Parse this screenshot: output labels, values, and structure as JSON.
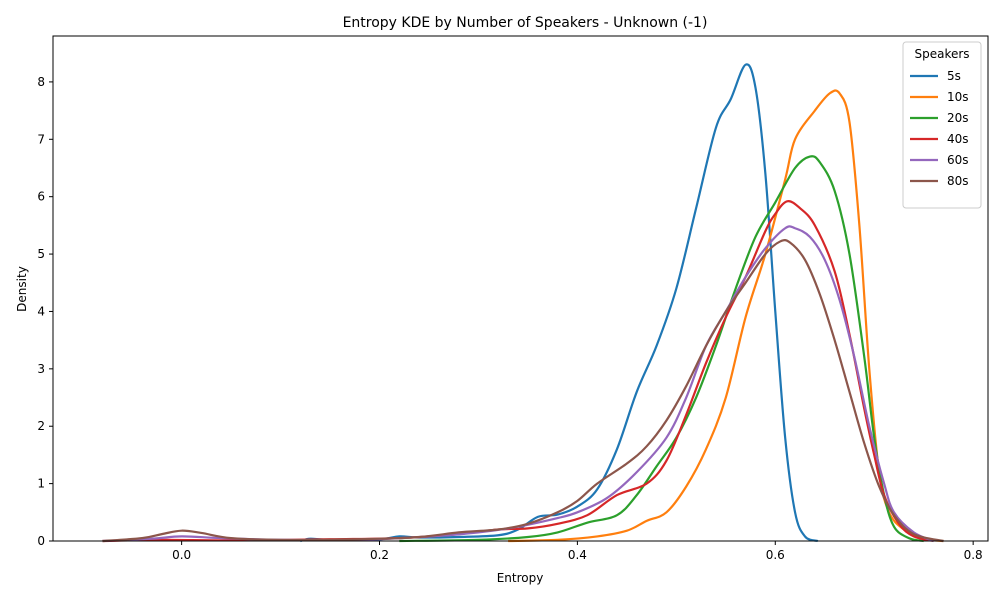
{
  "chart_data": {
    "type": "line",
    "title": "Entropy KDE by Number of Speakers - Unknown (-1)",
    "xlabel": "Entropy",
    "ylabel": "Density",
    "xlim": [
      -0.13,
      0.815
    ],
    "ylim": [
      0,
      8.8
    ],
    "xticks": [
      0.0,
      0.2,
      0.4,
      0.6,
      0.8
    ],
    "xtick_labels": [
      "0.0",
      "0.2",
      "0.4",
      "0.6",
      "0.8"
    ],
    "yticks": [
      0,
      1,
      2,
      3,
      4,
      5,
      6,
      7,
      8
    ],
    "ytick_labels": [
      "0",
      "1",
      "2",
      "3",
      "4",
      "5",
      "6",
      "7",
      "8"
    ],
    "grid": false,
    "legend": {
      "title": "Speakers",
      "placement": "top-right"
    },
    "series": [
      {
        "name": "5s",
        "color": "#1f77b4",
        "points": [
          [
            0.12,
            0.0
          ],
          [
            0.13,
            0.04
          ],
          [
            0.15,
            0.02
          ],
          [
            0.2,
            0.03
          ],
          [
            0.22,
            0.08
          ],
          [
            0.24,
            0.06
          ],
          [
            0.28,
            0.07
          ],
          [
            0.32,
            0.1
          ],
          [
            0.34,
            0.2
          ],
          [
            0.36,
            0.42
          ],
          [
            0.38,
            0.46
          ],
          [
            0.4,
            0.6
          ],
          [
            0.42,
            0.9
          ],
          [
            0.44,
            1.6
          ],
          [
            0.46,
            2.6
          ],
          [
            0.48,
            3.4
          ],
          [
            0.5,
            4.4
          ],
          [
            0.52,
            5.8
          ],
          [
            0.54,
            7.2
          ],
          [
            0.555,
            7.7
          ],
          [
            0.57,
            8.3
          ],
          [
            0.58,
            7.9
          ],
          [
            0.59,
            6.4
          ],
          [
            0.6,
            4.0
          ],
          [
            0.61,
            1.8
          ],
          [
            0.62,
            0.5
          ],
          [
            0.63,
            0.08
          ],
          [
            0.643,
            0.0
          ]
        ]
      },
      {
        "name": "10s",
        "color": "#ff7f0e",
        "points": [
          [
            0.33,
            0.0
          ],
          [
            0.38,
            0.02
          ],
          [
            0.42,
            0.08
          ],
          [
            0.45,
            0.18
          ],
          [
            0.47,
            0.35
          ],
          [
            0.49,
            0.5
          ],
          [
            0.51,
            0.95
          ],
          [
            0.53,
            1.6
          ],
          [
            0.55,
            2.5
          ],
          [
            0.57,
            3.9
          ],
          [
            0.59,
            5.0
          ],
          [
            0.61,
            6.3
          ],
          [
            0.62,
            7.0
          ],
          [
            0.64,
            7.5
          ],
          [
            0.655,
            7.8
          ],
          [
            0.665,
            7.8
          ],
          [
            0.675,
            7.3
          ],
          [
            0.685,
            5.5
          ],
          [
            0.695,
            3.0
          ],
          [
            0.705,
            1.2
          ],
          [
            0.715,
            0.5
          ],
          [
            0.73,
            0.2
          ],
          [
            0.75,
            0.04
          ],
          [
            0.77,
            0.0
          ]
        ]
      },
      {
        "name": "20s",
        "color": "#2ca02c",
        "points": [
          [
            0.22,
            0.0
          ],
          [
            0.3,
            0.02
          ],
          [
            0.35,
            0.07
          ],
          [
            0.38,
            0.15
          ],
          [
            0.41,
            0.32
          ],
          [
            0.44,
            0.45
          ],
          [
            0.46,
            0.8
          ],
          [
            0.48,
            1.3
          ],
          [
            0.5,
            1.8
          ],
          [
            0.52,
            2.5
          ],
          [
            0.54,
            3.4
          ],
          [
            0.56,
            4.4
          ],
          [
            0.58,
            5.3
          ],
          [
            0.6,
            5.9
          ],
          [
            0.62,
            6.5
          ],
          [
            0.635,
            6.7
          ],
          [
            0.645,
            6.6
          ],
          [
            0.66,
            6.1
          ],
          [
            0.675,
            5.0
          ],
          [
            0.69,
            3.2
          ],
          [
            0.7,
            1.8
          ],
          [
            0.71,
            0.8
          ],
          [
            0.72,
            0.25
          ],
          [
            0.735,
            0.05
          ],
          [
            0.75,
            0.0
          ]
        ]
      },
      {
        "name": "40s",
        "color": "#d62728",
        "points": [
          [
            -0.08,
            0.0
          ],
          [
            -0.02,
            0.02
          ],
          [
            0.05,
            0.01
          ],
          [
            0.15,
            0.03
          ],
          [
            0.22,
            0.05
          ],
          [
            0.28,
            0.12
          ],
          [
            0.32,
            0.2
          ],
          [
            0.35,
            0.22
          ],
          [
            0.38,
            0.3
          ],
          [
            0.41,
            0.45
          ],
          [
            0.44,
            0.8
          ],
          [
            0.47,
            1.0
          ],
          [
            0.49,
            1.4
          ],
          [
            0.51,
            2.2
          ],
          [
            0.53,
            3.1
          ],
          [
            0.55,
            3.9
          ],
          [
            0.57,
            4.6
          ],
          [
            0.59,
            5.4
          ],
          [
            0.6,
            5.7
          ],
          [
            0.612,
            5.92
          ],
          [
            0.625,
            5.8
          ],
          [
            0.64,
            5.5
          ],
          [
            0.66,
            4.7
          ],
          [
            0.675,
            3.6
          ],
          [
            0.69,
            2.3
          ],
          [
            0.7,
            1.5
          ],
          [
            0.71,
            0.8
          ],
          [
            0.725,
            0.3
          ],
          [
            0.74,
            0.08
          ],
          [
            0.76,
            0.0
          ]
        ]
      },
      {
        "name": "60s",
        "color": "#9467bd",
        "points": [
          [
            -0.08,
            0.0
          ],
          [
            -0.03,
            0.04
          ],
          [
            0.0,
            0.08
          ],
          [
            0.04,
            0.05
          ],
          [
            0.1,
            0.02
          ],
          [
            0.18,
            0.02
          ],
          [
            0.25,
            0.08
          ],
          [
            0.3,
            0.15
          ],
          [
            0.34,
            0.25
          ],
          [
            0.38,
            0.4
          ],
          [
            0.4,
            0.5
          ],
          [
            0.43,
            0.75
          ],
          [
            0.46,
            1.2
          ],
          [
            0.49,
            1.8
          ],
          [
            0.51,
            2.5
          ],
          [
            0.53,
            3.4
          ],
          [
            0.55,
            4.0
          ],
          [
            0.57,
            4.6
          ],
          [
            0.59,
            5.1
          ],
          [
            0.61,
            5.45
          ],
          [
            0.62,
            5.45
          ],
          [
            0.635,
            5.3
          ],
          [
            0.65,
            4.9
          ],
          [
            0.665,
            4.2
          ],
          [
            0.68,
            3.2
          ],
          [
            0.695,
            2.0
          ],
          [
            0.71,
            1.0
          ],
          [
            0.72,
            0.5
          ],
          [
            0.74,
            0.15
          ],
          [
            0.76,
            0.0
          ]
        ]
      },
      {
        "name": "80s",
        "color": "#8c564b",
        "points": [
          [
            -0.08,
            0.0
          ],
          [
            -0.04,
            0.05
          ],
          [
            -0.02,
            0.12
          ],
          [
            0.0,
            0.18
          ],
          [
            0.02,
            0.14
          ],
          [
            0.05,
            0.05
          ],
          [
            0.1,
            0.02
          ],
          [
            0.18,
            0.03
          ],
          [
            0.24,
            0.07
          ],
          [
            0.28,
            0.15
          ],
          [
            0.32,
            0.2
          ],
          [
            0.35,
            0.3
          ],
          [
            0.38,
            0.5
          ],
          [
            0.4,
            0.7
          ],
          [
            0.42,
            1.0
          ],
          [
            0.45,
            1.35
          ],
          [
            0.47,
            1.65
          ],
          [
            0.49,
            2.1
          ],
          [
            0.51,
            2.7
          ],
          [
            0.53,
            3.4
          ],
          [
            0.55,
            4.0
          ],
          [
            0.57,
            4.5
          ],
          [
            0.59,
            5.0
          ],
          [
            0.605,
            5.22
          ],
          [
            0.615,
            5.2
          ],
          [
            0.63,
            4.9
          ],
          [
            0.645,
            4.3
          ],
          [
            0.66,
            3.5
          ],
          [
            0.675,
            2.6
          ],
          [
            0.69,
            1.7
          ],
          [
            0.705,
            0.95
          ],
          [
            0.72,
            0.45
          ],
          [
            0.74,
            0.12
          ],
          [
            0.77,
            0.0
          ]
        ]
      }
    ]
  }
}
